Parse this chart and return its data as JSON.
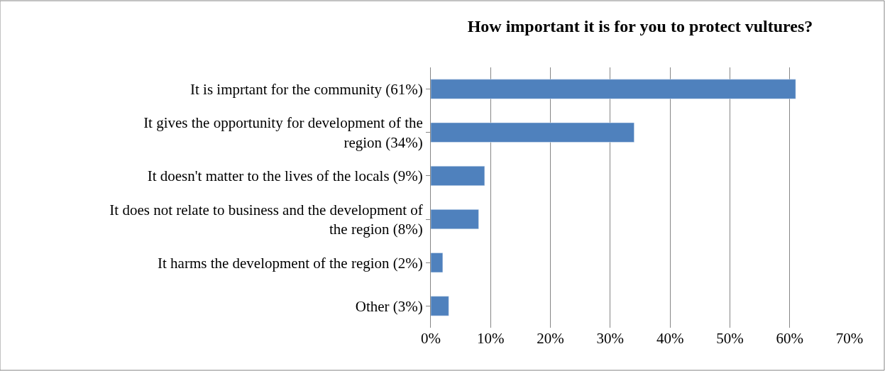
{
  "chart_data": {
    "type": "bar",
    "orientation": "horizontal",
    "title": "How important it is for you to protect vultures?",
    "categories": [
      "It is imprtant for the community (61%)",
      "It gives the opportunity for development of the\nregion (34%)",
      "It doesn't matter to the lives of the locals (9%)",
      "It does not relate to business and the development of\nthe region (8%)",
      "It harms the development of the region (2%)",
      "Other (3%)"
    ],
    "values": [
      61,
      34,
      9,
      8,
      2,
      3
    ],
    "color": "#4f81bd",
    "xlim": [
      0,
      70
    ],
    "xticks": [
      {
        "value": 0,
        "label": "0%"
      },
      {
        "value": 10,
        "label": "10%"
      },
      {
        "value": 20,
        "label": "20%"
      },
      {
        "value": 30,
        "label": "30%"
      },
      {
        "value": 40,
        "label": "40%"
      },
      {
        "value": 50,
        "label": "50%"
      },
      {
        "value": 60,
        "label": "60%"
      },
      {
        "value": 70,
        "label": "70%"
      }
    ],
    "grid": "x",
    "legend": false
  }
}
